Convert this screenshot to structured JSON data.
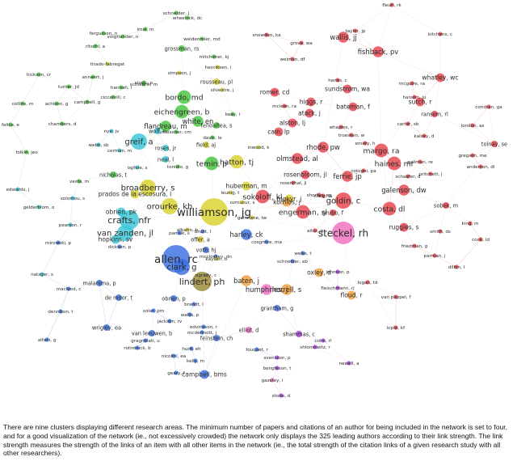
{
  "network": {
    "clusters": [
      {
        "id": "red",
        "color": "#e8424c"
      },
      {
        "id": "green",
        "color": "#46c43c"
      },
      {
        "id": "blue",
        "color": "#3b6fe0"
      },
      {
        "id": "yellow",
        "color": "#d8d22c"
      },
      {
        "id": "purple",
        "color": "#a93ddb"
      },
      {
        "id": "cyan",
        "color": "#38c6d8"
      },
      {
        "id": "orange",
        "color": "#f0a03a"
      },
      {
        "id": "brown",
        "color": "#9a8a38"
      },
      {
        "id": "pink",
        "color": "#ef6fc0"
      }
    ],
    "nodes": [
      {
        "label": "williamson, jg",
        "cluster": "yellow",
        "weight": 10
      },
      {
        "label": "steckel, rh",
        "cluster": "pink",
        "weight": 9
      },
      {
        "label": "allen, rc",
        "cluster": "blue",
        "weight": 10
      },
      {
        "label": "clark, g",
        "cluster": "blue",
        "weight": 7
      },
      {
        "label": "lindert, ph",
        "cluster": "brown",
        "weight": 8
      },
      {
        "label": "crafts, nfr",
        "cluster": "cyan",
        "weight": 8
      },
      {
        "label": "van zanden, jl",
        "cluster": "cyan",
        "weight": 7
      },
      {
        "label": "broadberry, s",
        "cluster": "yellow",
        "weight": 7
      },
      {
        "label": "orourke, kh",
        "cluster": "yellow",
        "weight": 7
      },
      {
        "label": "greif, a",
        "cluster": "cyan",
        "weight": 7
      },
      {
        "label": "bordo, md",
        "cluster": "green",
        "weight": 6
      },
      {
        "label": "eichengreen, b",
        "cluster": "green",
        "weight": 6
      },
      {
        "label": "flandreau, m",
        "cluster": "green",
        "weight": 5
      },
      {
        "label": "white, en",
        "cluster": "green",
        "weight": 5
      },
      {
        "label": "temin, p",
        "cluster": "green",
        "weight": 6
      },
      {
        "label": "hatton, tj",
        "cluster": "yellow",
        "weight": 6
      },
      {
        "label": "sokoloff, kl",
        "cluster": "red",
        "weight": 6
      },
      {
        "label": "engerman, sl",
        "cluster": "red",
        "weight": 6
      },
      {
        "label": "goldin, c",
        "cluster": "red",
        "weight": 7
      },
      {
        "label": "margo, ra",
        "cluster": "red",
        "weight": 6
      },
      {
        "label": "haines, mr",
        "cluster": "red",
        "weight": 6
      },
      {
        "label": "costa, dl",
        "cluster": "red",
        "weight": 6
      },
      {
        "label": "galenson, dw",
        "cluster": "red",
        "weight": 5
      },
      {
        "label": "ferrie, jp",
        "cluster": "red",
        "weight": 5
      },
      {
        "label": "cain, lp",
        "cluster": "red",
        "weight": 4
      },
      {
        "label": "rhode, pw",
        "cluster": "red",
        "weight": 5
      },
      {
        "label": "olmstead, al",
        "cluster": "red",
        "weight": 5
      },
      {
        "label": "fishback, pv",
        "cluster": "red",
        "weight": 5
      },
      {
        "label": "wallis, jj",
        "cluster": "red",
        "weight": 5
      },
      {
        "label": "romer, cd",
        "cluster": "red",
        "weight": 4
      },
      {
        "label": "higgs, r",
        "cluster": "red",
        "weight": 4
      },
      {
        "label": "atack, j",
        "cluster": "red",
        "weight": 4
      },
      {
        "label": "bateman, f",
        "cluster": "red",
        "weight": 4
      },
      {
        "label": "alston, lj",
        "cluster": "red",
        "weight": 4
      },
      {
        "label": "sundstrom, wa",
        "cluster": "red",
        "weight": 4
      },
      {
        "label": "whatley, wc",
        "cluster": "red",
        "weight": 4
      },
      {
        "label": "sutch, r",
        "cluster": "red",
        "weight": 4
      },
      {
        "label": "ransom, rl",
        "cluster": "red",
        "weight": 3
      },
      {
        "label": "tolnay, se",
        "cluster": "red",
        "weight": 3
      },
      {
        "label": "ruggles, s",
        "cluster": "red",
        "weight": 4
      },
      {
        "label": "sobek, m",
        "cluster": "red",
        "weight": 3
      },
      {
        "label": "rosenbloom, jl",
        "cluster": "red",
        "weight": 4
      },
      {
        "label": "harley, ck",
        "cluster": "blue",
        "weight": 5
      },
      {
        "label": "huberman, m",
        "cluster": "yellow",
        "weight": 4
      },
      {
        "label": "mokyr, j",
        "cluster": "yellow",
        "weight": 4
      },
      {
        "label": "hopkins, sv",
        "cluster": "cyan",
        "weight": 4
      },
      {
        "label": "obrien, pk",
        "cluster": "cyan",
        "weight": 4
      },
      {
        "label": "nicholas, t",
        "cluster": "green",
        "weight": 3
      },
      {
        "label": "prados de la escosura, l",
        "cluster": "yellow",
        "weight": 4
      },
      {
        "label": "baten, j",
        "cluster": "orange",
        "weight": 5
      },
      {
        "label": "humphries, j",
        "cluster": "pink",
        "weight": 5
      },
      {
        "label": "horrell, s",
        "cluster": "orange",
        "weight": 5
      },
      {
        "label": "oxley, d",
        "cluster": "orange",
        "weight": 4
      },
      {
        "label": "komlos, j",
        "cluster": "orange",
        "weight": 4
      },
      {
        "label": "grubb, f",
        "cluster": "red",
        "weight": 3
      },
      {
        "label": "floud, r",
        "cluster": "orange",
        "weight": 4
      },
      {
        "label": "grantham, g",
        "cluster": "blue",
        "weight": 3
      },
      {
        "label": "shammas, c",
        "cluster": "purple",
        "weight": 3
      },
      {
        "label": "campbell, bms",
        "cluster": "blue",
        "weight": 4
      },
      {
        "label": "van leeuwen, b",
        "cluster": "blue",
        "weight": 3
      },
      {
        "label": "wrigley, ea",
        "cluster": "blue",
        "weight": 3
      },
      {
        "label": "feinstein, ch",
        "cluster": "blue",
        "weight": 3
      },
      {
        "label": "offer, a",
        "cluster": "yellow",
        "weight": 3
      },
      {
        "label": "voth, hj",
        "cluster": "blue",
        "weight": 3
      },
      {
        "label": "obrien, p",
        "cluster": "blue",
        "weight": 3
      },
      {
        "label": "elliot, d",
        "cluster": "pink",
        "weight": 3
      },
      {
        "label": "grossman, rs",
        "cluster": "green",
        "weight": 3
      },
      {
        "label": "rousseau, pl",
        "cluster": "yellow",
        "weight": 3
      },
      {
        "label": "field, aj",
        "cluster": "yellow",
        "weight": 3
      },
      {
        "label": "roses, jr",
        "cluster": "cyan",
        "weight": 3
      },
      {
        "label": "neal, l",
        "cluster": "cyan",
        "weight": 3
      },
      {
        "label": "wolf, n",
        "cluster": "cyan",
        "weight": 3
      },
      {
        "label": "fenoaltea, s",
        "cluster": "green",
        "weight": 3
      },
      {
        "label": "malanima, p",
        "cluster": "blue",
        "weight": 3
      },
      {
        "label": "de moor, t",
        "cluster": "blue",
        "weight": 3
      },
      {
        "label": "van pappel, f",
        "cluster": "red",
        "weight": 2
      },
      {
        "label": "friedman, g",
        "cluster": "red",
        "weight": 2
      },
      {
        "label": "fergusson, n",
        "cluster": "green",
        "weight": 2
      },
      {
        "label": "wheelock, dc",
        "cluster": "green",
        "weight": 2
      },
      {
        "label": "weidenmier, md",
        "cluster": "green",
        "weight": 2
      },
      {
        "label": "mitchener, kj",
        "cluster": "green",
        "weight": 2
      },
      {
        "label": "turner, jd",
        "cluster": "green",
        "weight": 2
      },
      {
        "label": "hickson, cr",
        "cluster": "green",
        "weight": 2
      },
      {
        "label": "collins, m",
        "cluster": "green",
        "weight": 2
      },
      {
        "label": "achison, g",
        "cluster": "green",
        "weight": 2
      },
      {
        "label": "campbell, g",
        "cluster": "green",
        "weight": 2
      },
      {
        "label": "felice, e",
        "cluster": "green",
        "weight": 2
      },
      {
        "label": "folkin, jeo",
        "cluster": "green",
        "weight": 2
      },
      {
        "label": "vasta, m",
        "cluster": "green",
        "weight": 2
      },
      {
        "label": "edwards, j",
        "cluster": "cyan",
        "weight": 2
      },
      {
        "label": "gelderblom, o",
        "cluster": "cyan",
        "weight": 2
      },
      {
        "label": "pearson, r",
        "cluster": "cyan",
        "weight": 2
      },
      {
        "label": "mirowski, p",
        "cluster": "blue",
        "weight": 2
      },
      {
        "label": "natzger, s",
        "cluster": "cyan",
        "weight": 2
      },
      {
        "label": "macleod, c",
        "cluster": "blue",
        "weight": 2
      },
      {
        "label": "dennison, t",
        "cluster": "blue",
        "weight": 2
      },
      {
        "label": "alfani, g",
        "cluster": "blue",
        "weight": 2
      },
      {
        "label": "jackson, rv",
        "cluster": "blue",
        "weight": 2
      },
      {
        "label": "wallis, p",
        "cluster": "blue",
        "weight": 2
      },
      {
        "label": "hunt, eh",
        "cluster": "blue",
        "weight": 2
      },
      {
        "label": "kelly, m",
        "cluster": "blue",
        "weight": 2
      },
      {
        "label": "geary, f",
        "cluster": "blue",
        "weight": 2
      },
      {
        "label": "nicolini, ea",
        "cluster": "blue",
        "weight": 2
      },
      {
        "label": "gazeley, i",
        "cluster": "pink",
        "weight": 2
      },
      {
        "label": "stone, d",
        "cluster": "purple",
        "weight": 2
      },
      {
        "label": "svensson, p",
        "cluster": "purple",
        "weight": 2
      },
      {
        "label": "bengtsson, t",
        "cluster": "purple",
        "weight": 2
      },
      {
        "label": "cohn, rl",
        "cluster": "purple",
        "weight": 2
      },
      {
        "label": "shlomowitz, r",
        "cluster": "purple",
        "weight": 2
      },
      {
        "label": "johnson, p",
        "cluster": "purple",
        "weight": 2
      },
      {
        "label": "fleischmann, rj",
        "cluster": "purple",
        "weight": 2
      },
      {
        "label": "weiss, t",
        "cluster": "blue",
        "weight": 2
      },
      {
        "label": "schneider, eb",
        "cluster": "blue",
        "weight": 2
      },
      {
        "label": "logan, td",
        "cluster": "red",
        "weight": 2
      },
      {
        "label": "kiple, kf",
        "cluster": "red",
        "weight": 2
      },
      {
        "label": "newell, a",
        "cluster": "purple",
        "weight": 2
      },
      {
        "label": "king, m",
        "cluster": "red",
        "weight": 2
      },
      {
        "label": "cook, ld",
        "cluster": "red",
        "weight": 2
      },
      {
        "label": "dillon, l",
        "cluster": "red",
        "weight": 2
      },
      {
        "label": "smith, ds",
        "cluster": "red",
        "weight": 2
      },
      {
        "label": "parman, j",
        "cluster": "red",
        "weight": 2
      },
      {
        "label": "condran, ga",
        "cluster": "red",
        "weight": 2
      },
      {
        "label": "hanson, ju",
        "cluster": "red",
        "weight": 2
      },
      {
        "label": "mcguire, ra",
        "cluster": "red",
        "weight": 2
      },
      {
        "label": "kitchens, c",
        "cluster": "red",
        "weight": 2
      },
      {
        "label": "fleuri, rk",
        "cluster": "red",
        "weight": 2
      },
      {
        "label": "taylor, jp",
        "cluster": "red",
        "weight": 2
      },
      {
        "label": "grove, wa",
        "cluster": "red",
        "weight": 2
      },
      {
        "label": "weiman, df",
        "cluster": "red",
        "weight": 2
      },
      {
        "label": "snowden, ka",
        "cluster": "red",
        "weight": 2
      },
      {
        "label": "hanes, c",
        "cluster": "red",
        "weight": 2
      },
      {
        "label": "mclean, ra",
        "cluster": "red",
        "weight": 2
      },
      {
        "label": "anderson, dl",
        "cluster": "red",
        "weight": 2
      },
      {
        "label": "gregson, me",
        "cluster": "red",
        "weight": 2
      },
      {
        "label": "pritchett, j",
        "cluster": "red",
        "weight": 2
      },
      {
        "label": "london, as",
        "cluster": "red",
        "weight": 2
      },
      {
        "label": "whaples, r",
        "cluster": "red",
        "weight": 2
      },
      {
        "label": "troesken, w",
        "cluster": "red",
        "weight": 2
      },
      {
        "label": "carter, sb",
        "cluster": "red",
        "weight": 2
      },
      {
        "label": "emery, h",
        "cluster": "red",
        "weight": 2
      },
      {
        "label": "cotogni, pa",
        "cluster": "red",
        "weight": 2
      },
      {
        "label": "kalsey, d",
        "cluster": "red",
        "weight": 2
      },
      {
        "label": "gallman, re",
        "cluster": "red",
        "weight": 2
      },
      {
        "label": "schaefer, d",
        "cluster": "red",
        "weight": 2
      },
      {
        "label": "mccloskey, dn",
        "cluster": "blue",
        "weight": 2
      },
      {
        "label": "guinnane, tw",
        "cluster": "yellow",
        "weight": 2
      },
      {
        "label": "brunt, l",
        "cluster": "blue",
        "weight": 2
      },
      {
        "label": "toniolo, g",
        "cluster": "green",
        "weight": 2
      },
      {
        "label": "schularik, m",
        "cluster": "green",
        "weight": 2
      },
      {
        "label": "simpson, j",
        "cluster": "yellow",
        "weight": 2
      },
      {
        "label": "henriksen, i",
        "cluster": "yellow",
        "weight": 2
      },
      {
        "label": "silvestre, j",
        "cluster": "yellow",
        "weight": 2
      },
      {
        "label": "tirado-fabregat",
        "cluster": "yellow",
        "weight": 2
      },
      {
        "label": "ritschl, a",
        "cluster": "green",
        "weight": 2
      },
      {
        "label": "voigtlander, n",
        "cluster": "green",
        "weight": 2
      },
      {
        "label": "schneider, j",
        "cluster": "green",
        "weight": 2
      },
      {
        "label": "imai, m",
        "cluster": "green",
        "weight": 2
      },
      {
        "label": "annaert, j",
        "cluster": "green",
        "weight": 2
      },
      {
        "label": "sicsic, p",
        "cluster": "green",
        "weight": 2
      },
      {
        "label": "hannah, l",
        "cluster": "green",
        "weight": 2
      },
      {
        "label": "ciccarelli, c",
        "cluster": "green",
        "weight": 2
      },
      {
        "label": "chambers, d",
        "cluster": "green",
        "weight": 2
      },
      {
        "label": "meissner, cm",
        "cluster": "green",
        "weight": 2
      },
      {
        "label": "davis, le",
        "cluster": "green",
        "weight": 2
      },
      {
        "label": "keay, i",
        "cluster": "green",
        "weight": 2
      },
      {
        "label": "webb, sb",
        "cluster": "cyan",
        "weight": 2
      },
      {
        "label": "nye, jv",
        "cluster": "cyan",
        "weight": 2
      },
      {
        "label": "cerman, m",
        "cluster": "cyan",
        "weight": 2
      },
      {
        "label": "ogilvie, s",
        "cluster": "cyan",
        "weight": 2
      },
      {
        "label": "solomou, s",
        "cluster": "cyan",
        "weight": 2
      },
      {
        "label": "fouquet, r",
        "cluster": "blue",
        "weight": 2
      },
      {
        "label": "gragnolati, u",
        "cluster": "blue",
        "weight": 2
      },
      {
        "label": "rotinbuck, b",
        "cluster": "blue",
        "weight": 2
      },
      {
        "label": "edvinsson, r",
        "cluster": "blue",
        "weight": 2
      },
      {
        "label": "mcdermott, j",
        "cluster": "blue",
        "weight": 2
      },
      {
        "label": "brandt, l",
        "cluster": "blue",
        "weight": 2
      },
      {
        "label": "solar, pm",
        "cluster": "blue",
        "weight": 2
      },
      {
        "label": "dickson, p",
        "cluster": "blue",
        "weight": 2
      },
      {
        "label": "cosgrove, ma",
        "cluster": "blue",
        "weight": 2
      },
      {
        "label": "inwood, k",
        "cluster": "yellow",
        "weight": 2
      },
      {
        "label": "leunig, t",
        "cluster": "yellow",
        "weight": 2
      },
      {
        "label": "ozmucur, s",
        "cluster": "yellow",
        "weight": 2
      },
      {
        "label": "altor, g",
        "cluster": "red",
        "weight": 2
      },
      {
        "label": "shorter, eg",
        "cluster": "red",
        "weight": 2
      },
      {
        "label": "craig, la",
        "cluster": "red",
        "weight": 2
      },
      {
        "label": "rosenthal, jl",
        "cluster": "red",
        "weight": 2
      },
      {
        "label": "albatin, b",
        "cluster": "yellow",
        "weight": 2
      },
      {
        "label": "kaysen, b",
        "cluster": "yellow",
        "weight": 2
      },
      {
        "label": "pamuk, s",
        "cluster": "blue",
        "weight": 2
      },
      {
        "label": "ogrady, c",
        "cluster": "blue",
        "weight": 2
      }
    ]
  },
  "caption": "There are nine clusters displaying different research areas. The minimum number of papers and citations of an author for being included in the network is set to four, and for a good visualization of the network (ie., not excessively crowded) the network only displays the 325 leading authors according to their link strength. The link strength measures the strength of the links of an item with all other items in the network (ie., the total strength of the citation links of a given research study with all other researchers)."
}
